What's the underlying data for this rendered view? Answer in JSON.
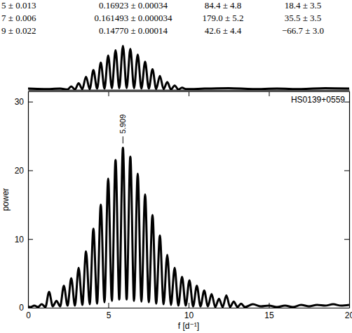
{
  "chart_data": [
    {
      "type": "line",
      "x_label": "f [d⁻¹]",
      "y_label": "power",
      "label": "HS0139+0559",
      "annotations": [
        {
          "text": "5.909",
          "x": 5.909,
          "y": 23.3
        }
      ],
      "color": "#000000",
      "xlim": [
        0,
        20
      ],
      "xticks": [
        0,
        5,
        10,
        15,
        20
      ],
      "ylim": [
        0,
        31.5
      ],
      "yticks": [
        0,
        10,
        20,
        30
      ],
      "x": [
        0,
        0.16,
        0.39,
        0.62,
        0.85,
        1.08,
        1.31,
        1.54,
        1.77,
        2.0,
        2.23,
        2.46,
        2.69,
        2.92,
        3.15,
        3.38,
        3.61,
        3.84,
        4.07,
        4.3,
        4.53,
        4.76,
        4.99,
        5.22,
        5.45,
        5.68,
        5.909,
        6.14,
        6.37,
        6.6,
        6.83,
        7.06,
        7.29,
        7.52,
        7.75,
        7.98,
        8.21,
        8.44,
        8.67,
        8.9,
        9.13,
        9.36,
        9.59,
        9.82,
        10.05,
        10.28,
        10.51,
        10.74,
        10.97,
        11.2,
        11.43,
        11.66,
        11.89,
        12.12,
        12.35,
        12.58,
        12.81,
        13.04,
        13.27,
        13.5,
        14.0,
        14.5,
        15.0,
        15.5,
        16.0,
        16.5,
        17.0,
        17.5,
        18.0,
        18.5,
        19.0,
        19.5,
        20.0
      ],
      "values": [
        0.2,
        0.1,
        0.3,
        0.1,
        0.5,
        0.1,
        2.3,
        0.2,
        1.0,
        0.2,
        3.2,
        0.3,
        4.3,
        0.3,
        5.8,
        0.4,
        8.2,
        0.5,
        11.5,
        0.6,
        15.0,
        0.8,
        18.8,
        1.0,
        21.5,
        1.2,
        23.3,
        1.2,
        22.0,
        1.0,
        19.5,
        0.9,
        16.5,
        0.8,
        13.5,
        0.6,
        10.5,
        0.5,
        7.7,
        0.4,
        5.8,
        0.3,
        4.5,
        0.3,
        4.0,
        0.2,
        3.2,
        0.2,
        2.5,
        0.2,
        2.0,
        0.1,
        1.3,
        0.1,
        1.8,
        0.1,
        0.9,
        0.1,
        0.6,
        0.1,
        0.5,
        0.2,
        0.3,
        0.1,
        0.3,
        0.1,
        0.4,
        0.2,
        0.4,
        0.3,
        0.5,
        0.3,
        0.4
      ]
    },
    {
      "type": "line",
      "tick_labels": false,
      "color": "#000000",
      "xlim": [
        0,
        20
      ],
      "ylim": [
        0,
        1.05
      ],
      "x": [
        0,
        1.0,
        2.0,
        2.46,
        2.69,
        2.92,
        3.15,
        3.38,
        3.61,
        3.84,
        4.07,
        4.3,
        4.53,
        4.76,
        4.99,
        5.22,
        5.45,
        5.68,
        5.909,
        6.14,
        6.37,
        6.6,
        6.83,
        7.06,
        7.29,
        7.52,
        7.75,
        7.98,
        8.21,
        8.44,
        8.67,
        8.9,
        9.13,
        9.36,
        9.59,
        9.82,
        11.0,
        12.5,
        14.0,
        15.5,
        17.0,
        18.5,
        20.0
      ],
      "values": [
        0.03,
        0.02,
        0.03,
        0.01,
        0.08,
        0.01,
        0.15,
        0.02,
        0.3,
        0.02,
        0.45,
        0.03,
        0.62,
        0.03,
        0.78,
        0.04,
        0.9,
        0.04,
        1.0,
        0.04,
        0.93,
        0.04,
        0.8,
        0.03,
        0.64,
        0.03,
        0.47,
        0.02,
        0.32,
        0.02,
        0.18,
        0.01,
        0.1,
        0.01,
        0.05,
        0.02,
        0.03,
        0.04,
        0.02,
        0.03,
        0.02,
        0.04,
        0.03
      ]
    }
  ],
  "table": {
    "rows": [
      [
        "5 ± 0.013",
        "0.16923 ± 0.00034",
        "84.4 ± 4.8",
        "18.4 ± 3.5"
      ],
      [
        "7 ± 0.006",
        "0.161493 ± 0.000034",
        "179.0 ± 5.2",
        "35.5 ± 3.5"
      ],
      [
        "9 ± 0.022",
        "0.14770 ± 0.00014",
        "42.6 ± 4.4",
        "−66.7 ± 3.0"
      ]
    ]
  }
}
